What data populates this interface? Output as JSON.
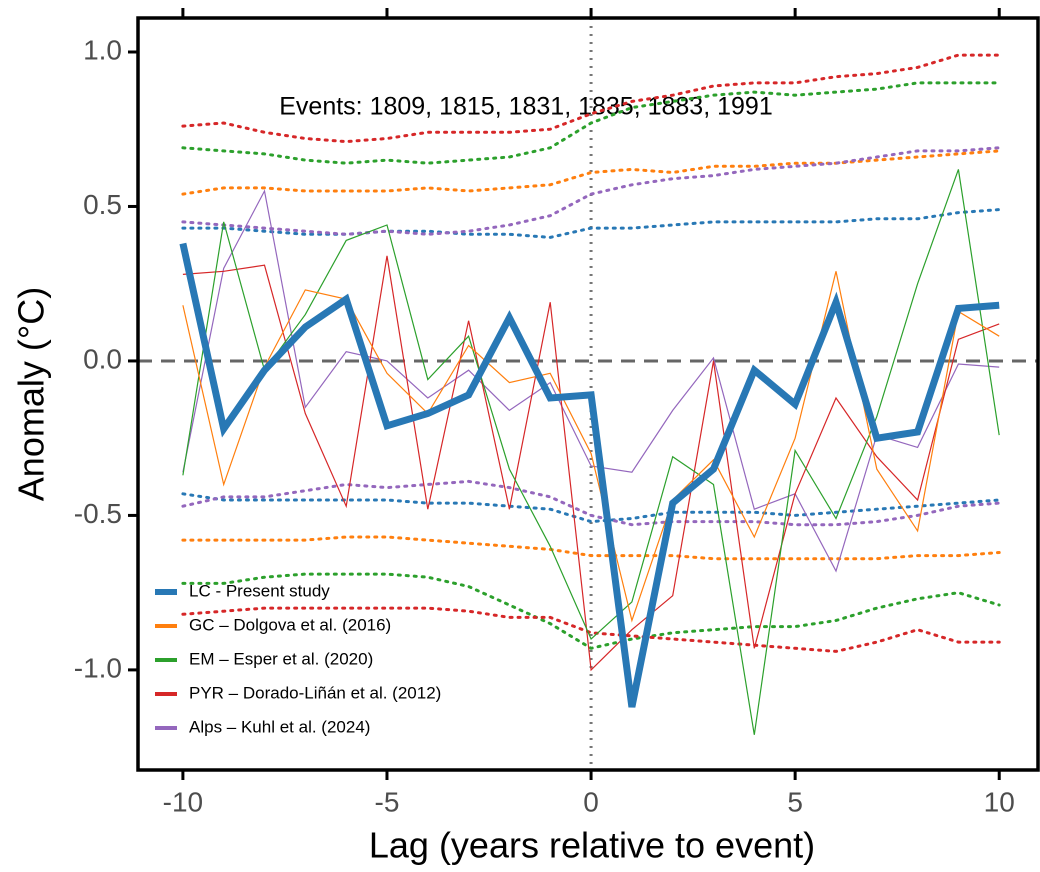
{
  "chart_data": {
    "type": "line",
    "annotation": "Events: 1809, 1815, 1831, 1835, 1883, 1991",
    "xlabel": "Lag (years relative to event)",
    "ylabel": "Anomaly (°C)",
    "x": [
      -10,
      -9,
      -8,
      -7,
      -6,
      -5,
      -4,
      -3,
      -2,
      -1,
      0,
      1,
      2,
      3,
      4,
      5,
      6,
      7,
      8,
      9,
      10
    ],
    "xlim": [
      -11.1,
      10.95
    ],
    "ylim": [
      -1.324,
      1.11
    ],
    "xticks": [
      -10,
      -5,
      0,
      5,
      10
    ],
    "yticks": [
      {
        "value": 1.0,
        "label": "1.0"
      },
      0.5,
      {
        "value": 0.0,
        "label": "0.0"
      },
      -0.5,
      {
        "value": -1.0,
        "label": "-1.0"
      }
    ],
    "hline": 0,
    "vline": 0,
    "legend": "bottom-left",
    "series": [
      {
        "name": "LC - Present study",
        "color": "#2878b5",
        "values": [
          0.38,
          -0.22,
          -0.03,
          0.11,
          0.2,
          -0.21,
          -0.17,
          -0.11,
          0.14,
          -0.12,
          -0.11,
          -1.12,
          -0.46,
          -0.35,
          -0.03,
          -0.14,
          0.19,
          -0.25,
          -0.23,
          0.17,
          0.18
        ],
        "upper": [
          0.43,
          0.43,
          0.42,
          0.41,
          0.41,
          0.42,
          0.42,
          0.41,
          0.41,
          0.4,
          0.43,
          0.43,
          0.44,
          0.45,
          0.45,
          0.45,
          0.45,
          0.46,
          0.46,
          0.48,
          0.49
        ],
        "lower": [
          -0.43,
          -0.45,
          -0.45,
          -0.45,
          -0.45,
          -0.45,
          -0.46,
          -0.46,
          -0.47,
          -0.48,
          -0.52,
          -0.51,
          -0.49,
          -0.49,
          -0.49,
          -0.5,
          -0.49,
          -0.48,
          -0.47,
          -0.46,
          -0.45
        ]
      },
      {
        "name": "GC – Dolgova et al. (2016)",
        "color": "#ff7f0e",
        "values": [
          0.18,
          -0.4,
          -0.02,
          0.23,
          0.2,
          -0.04,
          -0.17,
          0.05,
          -0.07,
          -0.04,
          -0.3,
          -0.84,
          -0.45,
          -0.32,
          -0.57,
          -0.25,
          0.29,
          -0.35,
          -0.55,
          0.16,
          0.08
        ],
        "upper": [
          0.54,
          0.56,
          0.56,
          0.55,
          0.55,
          0.55,
          0.56,
          0.55,
          0.56,
          0.57,
          0.61,
          0.62,
          0.61,
          0.63,
          0.63,
          0.64,
          0.64,
          0.65,
          0.66,
          0.67,
          0.68
        ],
        "lower": [
          -0.58,
          -0.58,
          -0.58,
          -0.58,
          -0.57,
          -0.57,
          -0.58,
          -0.59,
          -0.6,
          -0.61,
          -0.63,
          -0.63,
          -0.63,
          -0.64,
          -0.64,
          -0.64,
          -0.64,
          -0.64,
          -0.63,
          -0.63,
          -0.62
        ]
      },
      {
        "name": "EM – Esper et al. (2020)",
        "color": "#2ca02c",
        "values": [
          -0.37,
          0.45,
          -0.03,
          0.15,
          0.39,
          0.44,
          -0.06,
          0.08,
          -0.35,
          -0.6,
          -0.9,
          -0.78,
          -0.31,
          -0.4,
          -1.21,
          -0.29,
          -0.51,
          -0.18,
          0.25,
          0.62,
          -0.24
        ],
        "upper": [
          0.69,
          0.68,
          0.67,
          0.65,
          0.64,
          0.65,
          0.64,
          0.65,
          0.66,
          0.69,
          0.77,
          0.82,
          0.84,
          0.86,
          0.87,
          0.86,
          0.87,
          0.88,
          0.9,
          0.9,
          0.9
        ],
        "lower": [
          -0.72,
          -0.72,
          -0.7,
          -0.69,
          -0.69,
          -0.69,
          -0.7,
          -0.73,
          -0.79,
          -0.85,
          -0.93,
          -0.9,
          -0.88,
          -0.87,
          -0.86,
          -0.86,
          -0.84,
          -0.8,
          -0.77,
          -0.75,
          -0.79
        ]
      },
      {
        "name": "PYR – Dorado-Liñán et al. (2012)",
        "color": "#d62728",
        "values": [
          0.28,
          0.29,
          0.31,
          -0.17,
          -0.47,
          0.34,
          -0.48,
          0.13,
          -0.48,
          0.19,
          -1.0,
          -0.87,
          -0.76,
          0.0,
          -0.93,
          -0.43,
          -0.12,
          -0.31,
          -0.45,
          0.07,
          0.12
        ],
        "upper": [
          0.76,
          0.77,
          0.74,
          0.72,
          0.71,
          0.72,
          0.74,
          0.74,
          0.74,
          0.75,
          0.8,
          0.84,
          0.86,
          0.89,
          0.9,
          0.9,
          0.92,
          0.93,
          0.95,
          0.99,
          0.99
        ],
        "lower": [
          -0.82,
          -0.81,
          -0.8,
          -0.8,
          -0.8,
          -0.8,
          -0.8,
          -0.81,
          -0.83,
          -0.83,
          -0.88,
          -0.89,
          -0.9,
          -0.91,
          -0.92,
          -0.93,
          -0.94,
          -0.91,
          -0.87,
          -0.91,
          -0.91
        ]
      },
      {
        "name": "Alps – Kuhl et al. (2024)",
        "color": "#9467bd",
        "values": [
          -0.36,
          0.3,
          0.55,
          -0.15,
          0.03,
          0.0,
          -0.12,
          -0.03,
          -0.16,
          -0.07,
          -0.34,
          -0.36,
          -0.16,
          0.01,
          -0.48,
          -0.43,
          -0.68,
          -0.24,
          -0.28,
          -0.01,
          -0.02
        ],
        "upper": [
          0.45,
          0.44,
          0.43,
          0.42,
          0.41,
          0.42,
          0.41,
          0.42,
          0.44,
          0.47,
          0.54,
          0.57,
          0.59,
          0.6,
          0.62,
          0.63,
          0.64,
          0.66,
          0.68,
          0.68,
          0.69
        ],
        "lower": [
          -0.47,
          -0.44,
          -0.44,
          -0.42,
          -0.4,
          -0.41,
          -0.4,
          -0.39,
          -0.41,
          -0.44,
          -0.5,
          -0.53,
          -0.52,
          -0.52,
          -0.52,
          -0.53,
          -0.53,
          -0.52,
          -0.5,
          -0.47,
          -0.46
        ]
      }
    ]
  }
}
